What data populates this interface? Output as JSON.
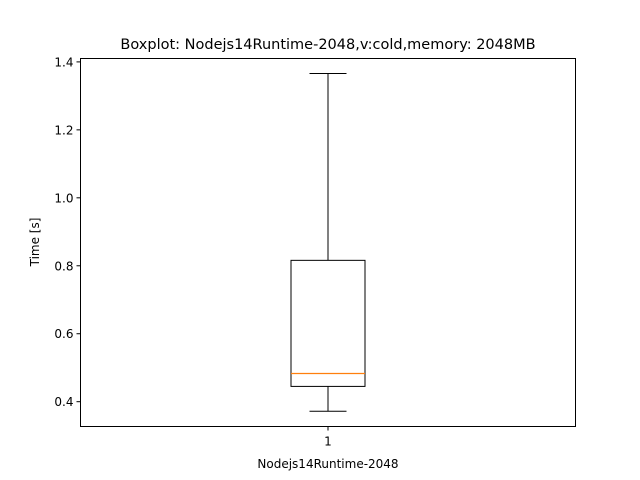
{
  "chart_data": {
    "type": "box",
    "title": "Boxplot: Nodejs14Runtime-2048,v:cold,memory: 2048MB",
    "xlabel": "Nodejs14Runtime-2048",
    "ylabel": "Time [s]",
    "categories": [
      "1"
    ],
    "ylim": [
      0.327,
      1.41
    ],
    "yticks": [
      0.4,
      0.6,
      0.8,
      1.0,
      1.2,
      1.4
    ],
    "ytick_labels": [
      "0.4",
      "0.6",
      "0.8",
      "1.0",
      "1.2",
      "1.4"
    ],
    "boxes": [
      {
        "whisker_low": 0.372,
        "q1": 0.445,
        "median": 0.483,
        "q3": 0.816,
        "whisker_high": 1.366
      }
    ],
    "grid": false,
    "colors": {
      "box": "#000000",
      "median": "#ff7f0e"
    }
  }
}
